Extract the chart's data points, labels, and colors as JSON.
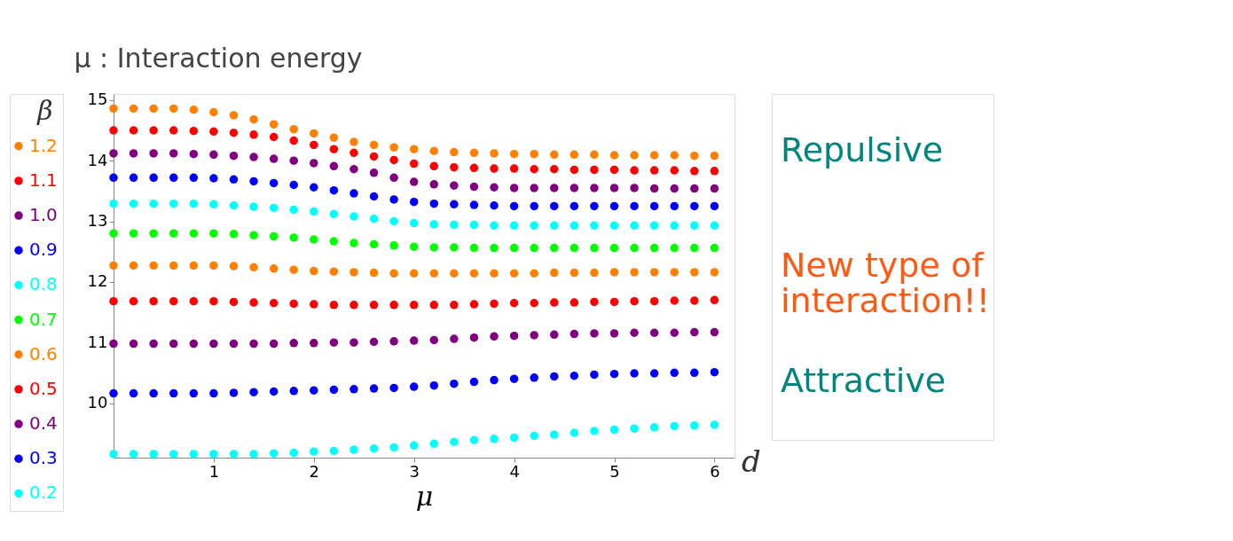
{
  "chart_data": {
    "type": "scatter",
    "ylabel": "μ : Interaction energy",
    "xlabel": "μ",
    "legend_title": "β",
    "annotations": [
      "d",
      "Repulsive",
      "New type of interaction!!",
      "Attractive"
    ],
    "x": [
      0,
      0.2,
      0.4,
      0.6,
      0.8,
      1.0,
      1.2,
      1.4,
      1.6,
      1.8,
      2.0,
      2.2,
      2.4,
      2.6,
      2.8,
      3.0,
      3.2,
      3.4,
      3.6,
      3.8,
      4.0,
      4.2,
      4.4,
      4.6,
      4.8,
      5.0,
      5.2,
      5.4,
      5.6,
      5.8,
      6.0
    ],
    "series": [
      {
        "name": "1.2",
        "color": "#ff8000",
        "values": [
          14.86,
          14.86,
          14.86,
          14.86,
          14.84,
          14.8,
          14.75,
          14.68,
          14.6,
          14.52,
          14.45,
          14.38,
          14.31,
          14.26,
          14.22,
          14.19,
          14.16,
          14.14,
          14.13,
          14.12,
          14.11,
          14.11,
          14.1,
          14.1,
          14.1,
          14.09,
          14.09,
          14.09,
          14.09,
          14.08,
          14.08
        ]
      },
      {
        "name": "1.1",
        "color": "#ff0000",
        "values": [
          14.5,
          14.5,
          14.5,
          14.5,
          14.49,
          14.48,
          14.46,
          14.43,
          14.39,
          14.33,
          14.26,
          14.19,
          14.13,
          14.07,
          14.01,
          13.95,
          13.91,
          13.89,
          13.88,
          13.87,
          13.87,
          13.86,
          13.86,
          13.85,
          13.85,
          13.85,
          13.84,
          13.84,
          13.84,
          13.83,
          13.83
        ]
      },
      {
        "name": "1.0",
        "color": "#800080",
        "values": [
          14.12,
          14.12,
          14.12,
          14.12,
          14.11,
          14.1,
          14.08,
          14.06,
          14.03,
          14.0,
          13.96,
          13.91,
          13.86,
          13.8,
          13.72,
          13.65,
          13.61,
          13.59,
          13.57,
          13.56,
          13.55,
          13.55,
          13.55,
          13.55,
          13.55,
          13.55,
          13.55,
          13.54,
          13.54,
          13.54,
          13.54
        ]
      },
      {
        "name": "0.9",
        "color": "#0000ff",
        "values": [
          13.72,
          13.72,
          13.72,
          13.72,
          13.72,
          13.71,
          13.69,
          13.66,
          13.63,
          13.6,
          13.56,
          13.51,
          13.46,
          13.41,
          13.36,
          13.32,
          13.29,
          13.28,
          13.27,
          13.26,
          13.25,
          13.25,
          13.25,
          13.25,
          13.25,
          13.25,
          13.25,
          13.25,
          13.25,
          13.25,
          13.25
        ]
      },
      {
        "name": "0.8",
        "color": "#00ffff",
        "values": [
          13.29,
          13.29,
          13.29,
          13.29,
          13.29,
          13.28,
          13.26,
          13.24,
          13.22,
          13.19,
          13.16,
          13.12,
          13.08,
          13.04,
          13.0,
          12.97,
          12.95,
          12.94,
          12.94,
          12.93,
          12.93,
          12.93,
          12.93,
          12.93,
          12.93,
          12.93,
          12.93,
          12.93,
          12.93,
          12.93,
          12.93
        ]
      },
      {
        "name": "0.7",
        "color": "#00ff00",
        "values": [
          12.8,
          12.8,
          12.8,
          12.8,
          12.8,
          12.8,
          12.79,
          12.77,
          12.75,
          12.73,
          12.7,
          12.67,
          12.64,
          12.62,
          12.6,
          12.58,
          12.57,
          12.57,
          12.56,
          12.56,
          12.56,
          12.56,
          12.56,
          12.56,
          12.56,
          12.56,
          12.56,
          12.56,
          12.56,
          12.56,
          12.56
        ]
      },
      {
        "name": "0.6",
        "color": "#ff8000",
        "values": [
          12.27,
          12.27,
          12.27,
          12.27,
          12.27,
          12.27,
          12.26,
          12.24,
          12.22,
          12.2,
          12.18,
          12.17,
          12.16,
          12.15,
          12.14,
          12.14,
          12.14,
          12.14,
          12.14,
          12.14,
          12.14,
          12.14,
          12.15,
          12.15,
          12.15,
          12.16,
          12.16,
          12.16,
          12.16,
          12.16,
          12.16
        ]
      },
      {
        "name": "0.5",
        "color": "#ff0000",
        "values": [
          11.68,
          11.68,
          11.68,
          11.68,
          11.68,
          11.68,
          11.67,
          11.66,
          11.65,
          11.64,
          11.63,
          11.62,
          11.62,
          11.62,
          11.62,
          11.62,
          11.62,
          11.62,
          11.63,
          11.64,
          11.65,
          11.65,
          11.66,
          11.66,
          11.67,
          11.67,
          11.68,
          11.68,
          11.69,
          11.69,
          11.7
        ]
      },
      {
        "name": "0.4",
        "color": "#800080",
        "values": [
          10.98,
          10.98,
          10.98,
          10.98,
          10.98,
          10.98,
          10.98,
          10.98,
          10.98,
          10.99,
          10.99,
          11.0,
          11.0,
          11.01,
          11.02,
          11.03,
          11.04,
          11.06,
          11.08,
          11.1,
          11.11,
          11.12,
          11.13,
          11.14,
          11.15,
          11.15,
          11.16,
          11.16,
          11.16,
          11.17,
          11.17
        ]
      },
      {
        "name": "0.3",
        "color": "#0000ff",
        "values": [
          10.16,
          10.16,
          10.16,
          10.16,
          10.16,
          10.16,
          10.17,
          10.18,
          10.19,
          10.2,
          10.21,
          10.22,
          10.23,
          10.24,
          10.25,
          10.27,
          10.29,
          10.32,
          10.35,
          10.38,
          10.4,
          10.42,
          10.44,
          10.45,
          10.47,
          10.48,
          10.49,
          10.49,
          10.5,
          10.5,
          10.51
        ]
      },
      {
        "name": "0.2",
        "color": "#00ffff",
        "values": [
          9.16,
          9.16,
          9.16,
          9.16,
          9.16,
          9.16,
          9.16,
          9.16,
          9.17,
          9.18,
          9.2,
          9.21,
          9.23,
          9.25,
          9.27,
          9.3,
          9.33,
          9.36,
          9.39,
          9.41,
          9.43,
          9.46,
          9.48,
          9.51,
          9.54,
          9.56,
          9.58,
          9.6,
          9.62,
          9.63,
          9.64
        ]
      }
    ],
    "xlim": [
      0,
      6.2
    ],
    "ylim": [
      9.1,
      15.1
    ],
    "xticks": [
      1,
      2,
      3,
      4,
      5,
      6
    ],
    "yticks": [
      10,
      11,
      12,
      13,
      14,
      15
    ],
    "grid": false,
    "legend": "left",
    "marker": "circle"
  }
}
